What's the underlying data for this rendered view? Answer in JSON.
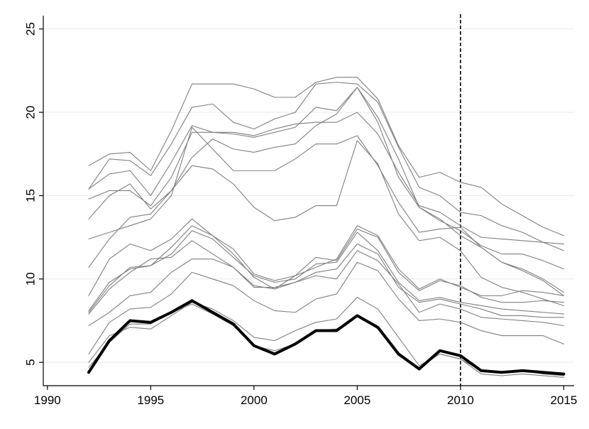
{
  "chart_data": {
    "type": "line",
    "title": "",
    "xlabel": "",
    "ylabel": "",
    "xlim": [
      1989.8,
      2015.5
    ],
    "ylim": [
      3.6,
      25.8
    ],
    "x_ticks": [
      1990,
      1995,
      2000,
      2005,
      2010,
      2015
    ],
    "y_ticks": [
      5,
      10,
      15,
      20,
      25
    ],
    "x_tick_labels": [
      "1990",
      "1995",
      "2000",
      "2005",
      "2010",
      "2015"
    ],
    "y_tick_labels": [
      "5",
      "10",
      "15",
      "20",
      "25"
    ],
    "grid": "horizontal",
    "legend": "none",
    "reference_line": {
      "x": 2010,
      "style": "dashed"
    },
    "x": [
      1992,
      1993,
      1994,
      1995,
      1996,
      1997,
      1998,
      1999,
      2000,
      2001,
      2002,
      2003,
      2004,
      2005,
      2006,
      2007,
      2008,
      2009,
      2010,
      2011,
      2012,
      2013,
      2014,
      2015
    ],
    "series": [
      {
        "values": [
          4.4,
          6.3,
          7.5,
          7.4,
          8.0,
          8.7,
          8.0,
          7.3,
          6.0,
          5.5,
          6.1,
          6.9,
          6.9,
          7.8,
          7.1,
          5.5,
          4.6,
          5.7,
          5.4,
          4.5,
          4.4,
          4.5,
          4.4,
          4.3
        ],
        "emphasis": true
      },
      {
        "values": [
          16.8,
          17.5,
          17.6,
          16.5,
          18.9,
          21.7,
          21.7,
          21.7,
          21.4,
          20.9,
          20.9,
          21.8,
          22.1,
          22.1,
          20.8,
          18.0,
          16.1,
          16.4,
          15.8,
          15.5,
          14.5,
          13.8,
          13.1,
          12.6
        ]
      },
      {
        "values": [
          15.4,
          17.2,
          17.1,
          16.2,
          18.1,
          20.3,
          20.5,
          19.4,
          19.0,
          19.6,
          20.0,
          21.7,
          21.8,
          21.7,
          20.6,
          17.9,
          15.5,
          15.0,
          14.0,
          13.8,
          13.2,
          12.8,
          12.2,
          11.7
        ]
      },
      {
        "values": [
          15.4,
          16.3,
          16.5,
          15.0,
          17.0,
          19.2,
          18.8,
          18.8,
          18.6,
          19.0,
          19.3,
          19.4,
          19.4,
          20.0,
          18.7,
          16.4,
          14.4,
          14.0,
          13.2,
          12.5,
          12.4,
          12.3,
          12.2,
          12.1
        ]
      },
      {
        "values": [
          14.8,
          15.3,
          15.3,
          14.4,
          16.1,
          18.8,
          18.8,
          18.7,
          18.5,
          18.8,
          19.1,
          20.3,
          20.1,
          21.5,
          19.7,
          17.2,
          14.3,
          13.5,
          12.9,
          12.0,
          11.5,
          11.5,
          11.1,
          10.6
        ]
      },
      {
        "values": [
          13.6,
          15.0,
          15.7,
          14.2,
          15.3,
          17.3,
          18.4,
          17.8,
          17.6,
          17.9,
          18.1,
          19.2,
          19.9,
          21.5,
          19.4,
          16.1,
          14.3,
          13.6,
          12.6,
          11.9,
          11.0,
          10.6,
          10.0,
          9.2
        ]
      },
      {
        "values": [
          12.4,
          12.8,
          13.2,
          13.6,
          15.0,
          19.1,
          17.8,
          16.5,
          16.5,
          16.5,
          17.2,
          18.1,
          18.1,
          18.6,
          16.8,
          14.6,
          12.8,
          13.0,
          13.1,
          11.9,
          11.0,
          10.5,
          9.9,
          9.0
        ]
      },
      {
        "values": [
          10.7,
          12.4,
          13.7,
          13.9,
          15.3,
          16.8,
          16.6,
          15.7,
          14.3,
          13.5,
          13.7,
          14.4,
          14.4,
          18.3,
          16.9,
          13.9,
          12.3,
          12.5,
          11.7,
          10.1,
          9.5,
          9.2,
          8.8,
          8.4
        ]
      },
      {
        "values": [
          9.0,
          11.2,
          12.1,
          11.7,
          12.4,
          13.6,
          12.6,
          11.8,
          10.3,
          9.9,
          10.2,
          10.7,
          11.2,
          13.2,
          12.6,
          10.6,
          9.4,
          10.0,
          9.5,
          9.0,
          9.0,
          9.3,
          9.2,
          9.0
        ]
      },
      {
        "values": [
          8.0,
          9.6,
          10.7,
          10.8,
          11.9,
          13.2,
          12.6,
          11.5,
          10.1,
          9.4,
          10.2,
          11.3,
          11.1,
          13.0,
          12.5,
          10.4,
          9.3,
          9.9,
          9.6,
          8.9,
          8.6,
          8.6,
          8.7,
          8.6
        ]
      },
      {
        "values": [
          8.1,
          9.8,
          10.6,
          10.8,
          11.5,
          12.9,
          12.4,
          11.3,
          10.2,
          9.8,
          10.0,
          10.9,
          11.0,
          12.8,
          11.7,
          9.8,
          8.7,
          8.9,
          8.6,
          8.4,
          8.2,
          8.1,
          8.0,
          7.9
        ]
      },
      {
        "values": [
          7.9,
          9.4,
          10.4,
          11.2,
          11.3,
          12.3,
          11.5,
          10.7,
          9.6,
          9.4,
          9.8,
          10.4,
          10.6,
          12.1,
          11.5,
          9.5,
          8.6,
          8.8,
          8.5,
          8.2,
          7.8,
          7.8,
          7.7,
          7.7
        ]
      },
      {
        "values": [
          7.2,
          8.0,
          9.0,
          9.2,
          10.4,
          11.2,
          11.2,
          10.7,
          9.5,
          9.5,
          9.8,
          10.2,
          10.0,
          11.7,
          11.1,
          9.7,
          8.0,
          8.5,
          8.2,
          7.7,
          7.6,
          7.5,
          7.4,
          7.2
        ]
      },
      {
        "values": [
          5.5,
          7.4,
          8.2,
          8.3,
          9.1,
          10.4,
          10.0,
          9.6,
          8.7,
          8.1,
          8.0,
          8.8,
          9.1,
          11.0,
          10.5,
          8.8,
          7.5,
          7.6,
          7.4,
          6.9,
          6.6,
          6.6,
          6.6,
          6.1
        ]
      },
      {
        "values": [
          5.0,
          6.6,
          7.1,
          7.0,
          7.8,
          8.6,
          8.2,
          7.5,
          6.5,
          6.3,
          6.9,
          7.4,
          7.6,
          8.9,
          8.2,
          6.5,
          4.8,
          5.5,
          5.2,
          4.5,
          4.4,
          4.5,
          4.3,
          4.2
        ]
      },
      {
        "values": [
          4.7,
          6.2,
          7.3,
          7.3,
          8.0,
          8.5,
          7.9,
          7.2,
          6.0,
          5.7,
          6.1,
          6.9,
          7.0,
          7.8,
          7.0,
          5.4,
          4.7,
          5.5,
          5.2,
          4.3,
          4.2,
          4.3,
          4.2,
          4.1
        ]
      }
    ]
  },
  "colors": {
    "background": "#ffffff",
    "series_default": "#808080",
    "series_emphasis": "#000000",
    "axis": "#000000",
    "gridline": "#eaeaea"
  }
}
